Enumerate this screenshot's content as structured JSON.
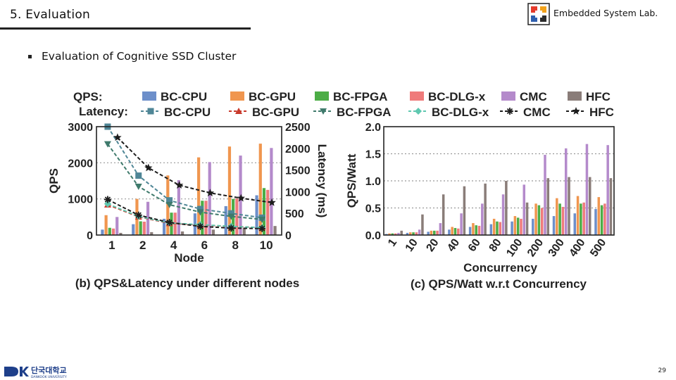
{
  "header": {
    "slide_title": "5. Evaluation",
    "lab_name": "Embedded System Lab."
  },
  "bullet": {
    "text": "Evaluation of Cognitive SSD Cluster"
  },
  "legend": {
    "qps_label": "QPS:",
    "latency_label": "Latency:",
    "series": [
      "BC-CPU",
      "BC-GPU",
      "BC-FPGA",
      "BC-DLG-x",
      "CMC",
      "HFC"
    ],
    "colors": {
      "BC-CPU": "#6d8fca",
      "BC-GPU": "#f0964f",
      "BC-FPGA": "#4cad46",
      "BC-DLG-x": "#ef7b7b",
      "CMC": "#b48acb",
      "HFC": "#8a7d79"
    },
    "latency_colors": {
      "BC-CPU": "#4f8696",
      "BC-GPU": "#c83a2c",
      "BC-FPGA": "#3f7a6c",
      "BC-DLG-x": "#5fc8b0",
      "CMC": "#1d1d1d",
      "HFC": "#1d1d1d"
    }
  },
  "chart_data": [
    {
      "type": "bar",
      "title": "(b) QPS&Latency under different nodes",
      "xlabel": "Node",
      "ylabel": "QPS",
      "y2label": "Latency (ms)",
      "categories": [
        "1",
        "2",
        "4",
        "6",
        "8",
        "10"
      ],
      "ylim": [
        0,
        3000
      ],
      "yticks": [
        0,
        1000,
        2000,
        3000
      ],
      "y2lim": [
        0,
        2500
      ],
      "y2ticks": [
        0,
        500,
        1000,
        1500,
        2000,
        2500
      ],
      "grid": true,
      "series": [
        {
          "name": "BC-CPU",
          "values": [
            150,
            300,
            450,
            600,
            800,
            1100
          ]
        },
        {
          "name": "BC-GPU",
          "values": [
            550,
            1000,
            1650,
            2150,
            2450,
            2530
          ]
        },
        {
          "name": "BC-FPGA",
          "values": [
            200,
            380,
            620,
            950,
            1000,
            1300
          ]
        },
        {
          "name": "BC-DLG-x",
          "values": [
            180,
            370,
            620,
            950,
            1010,
            1250
          ]
        },
        {
          "name": "CMC",
          "values": [
            500,
            920,
            1520,
            2020,
            2200,
            2410
          ]
        },
        {
          "name": "HFC",
          "values": [
            60,
            80,
            100,
            150,
            200,
            250
          ]
        }
      ],
      "latency_series": [
        {
          "name": "BC-CPU",
          "values": [
            2500,
            1370,
            800,
            600,
            500,
            400
          ]
        },
        {
          "name": "BC-GPU",
          "values": [
            700,
            420,
            270,
            230,
            200,
            170
          ]
        },
        {
          "name": "BC-FPGA",
          "values": [
            2100,
            1120,
            700,
            530,
            430,
            360
          ]
        },
        {
          "name": "BC-DLG-x",
          "values": [
            720,
            430,
            280,
            240,
            200,
            170
          ]
        },
        {
          "name": "CMC",
          "values": [
            820,
            460,
            290,
            200,
            160,
            150
          ]
        },
        {
          "name": "HFC",
          "values": [
            2250,
            1550,
            1150,
            970,
            850,
            750
          ]
        }
      ]
    },
    {
      "type": "bar",
      "title": "(c) QPS/Watt w.r.t Concurrency",
      "xlabel": "Concurrency",
      "ylabel": "QPS/Watt",
      "categories": [
        "1",
        "10",
        "20",
        "40",
        "60",
        "80",
        "100",
        "200",
        "300",
        "400",
        "500"
      ],
      "ylim": [
        0,
        2.0
      ],
      "yticks": [
        0.0,
        0.5,
        1.0,
        1.5,
        2.0
      ],
      "grid": true,
      "series": [
        {
          "name": "BC-CPU",
          "values": [
            0.02,
            0.04,
            0.06,
            0.1,
            0.15,
            0.2,
            0.25,
            0.3,
            0.35,
            0.4,
            0.48
          ]
        },
        {
          "name": "BC-GPU",
          "values": [
            0.03,
            0.05,
            0.08,
            0.15,
            0.22,
            0.3,
            0.35,
            0.58,
            0.68,
            0.72,
            0.7
          ]
        },
        {
          "name": "BC-FPGA",
          "values": [
            0.03,
            0.05,
            0.08,
            0.13,
            0.18,
            0.25,
            0.32,
            0.55,
            0.58,
            0.58,
            0.55
          ]
        },
        {
          "name": "BC-DLG-x",
          "values": [
            0.03,
            0.05,
            0.08,
            0.12,
            0.17,
            0.24,
            0.3,
            0.5,
            0.52,
            0.6,
            0.58
          ]
        },
        {
          "name": "CMC",
          "values": [
            0.04,
            0.1,
            0.22,
            0.4,
            0.58,
            0.75,
            0.93,
            1.48,
            1.6,
            1.68,
            1.66
          ]
        },
        {
          "name": "HFC",
          "values": [
            0.08,
            0.38,
            0.75,
            0.9,
            0.95,
            1.0,
            0.6,
            1.05,
            1.07,
            1.07,
            1.05
          ]
        }
      ]
    }
  ],
  "footer": {
    "university_name": "단국대학교",
    "university_sub": "DANKOOK UNIVERSITY",
    "page_number": "29"
  }
}
